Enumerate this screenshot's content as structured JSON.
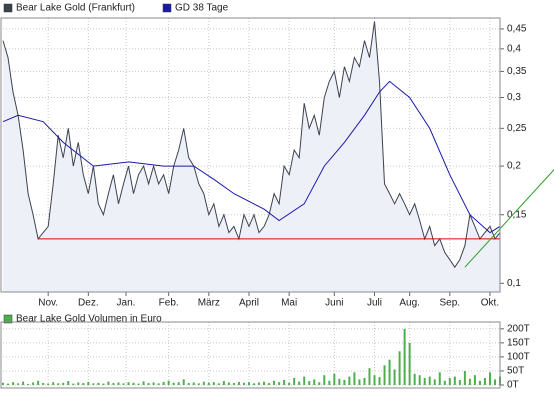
{
  "chart_data": [
    {
      "type": "line",
      "log": true,
      "grid": true,
      "xlim": [
        0,
        99
      ],
      "ylim": [
        0.095,
        0.48
      ],
      "xticks": [
        {
          "value": 9,
          "label": "Nov."
        },
        {
          "value": 17,
          "label": "Dez."
        },
        {
          "value": 24.5,
          "label": "Jan."
        },
        {
          "value": 33,
          "label": "Feb."
        },
        {
          "value": 41,
          "label": "März"
        },
        {
          "value": 49,
          "label": "April"
        },
        {
          "value": 57,
          "label": "Mai"
        },
        {
          "value": 66,
          "label": "Juni"
        },
        {
          "value": 74,
          "label": "Juli"
        },
        {
          "value": 81,
          "label": "Aug."
        },
        {
          "value": 89,
          "label": "Sep."
        },
        {
          "value": 97,
          "label": "Okt."
        }
      ],
      "yticks": [
        {
          "value": 0.1,
          "label": "0,1"
        },
        {
          "value": 0.15,
          "label": "0,15"
        },
        {
          "value": 0.2,
          "label": "0,2"
        },
        {
          "value": 0.25,
          "label": "0,25"
        },
        {
          "value": 0.3,
          "label": "0,3"
        },
        {
          "value": 0.35,
          "label": "0,35"
        },
        {
          "value": 0.4,
          "label": "0,4"
        },
        {
          "value": 0.45,
          "label": "0,45"
        }
      ],
      "series": [
        {
          "name": "Bear Lake Gold (Frankfurt)",
          "color": "#3c4250",
          "area_color": "#eef0f8",
          "x": [
            0,
            1,
            2,
            3,
            4,
            5,
            6,
            7,
            8,
            9,
            10,
            11,
            12,
            13,
            14,
            15,
            16,
            17,
            18,
            19,
            20,
            21,
            22,
            23,
            24,
            25,
            26,
            27,
            28,
            29,
            30,
            31,
            32,
            33,
            34,
            35,
            36,
            37,
            38,
            39,
            40,
            41,
            42,
            43,
            44,
            45,
            46,
            47,
            48,
            49,
            50,
            51,
            52,
            53,
            54,
            55,
            56,
            57,
            58,
            59,
            60,
            61,
            62,
            63,
            64,
            65,
            66,
            67,
            68,
            69,
            70,
            71,
            72,
            73,
            74,
            75,
            76,
            77,
            78,
            79,
            80,
            81,
            82,
            83,
            84,
            85,
            86,
            87,
            88,
            89,
            90,
            91,
            92,
            93,
            94,
            95,
            96,
            97,
            98,
            99
          ],
          "values": [
            0.42,
            0.38,
            0.31,
            0.27,
            0.22,
            0.17,
            0.15,
            0.13,
            0.135,
            0.14,
            0.18,
            0.24,
            0.21,
            0.25,
            0.2,
            0.23,
            0.19,
            0.17,
            0.2,
            0.16,
            0.15,
            0.17,
            0.19,
            0.16,
            0.18,
            0.2,
            0.17,
            0.19,
            0.2,
            0.18,
            0.2,
            0.18,
            0.19,
            0.17,
            0.2,
            0.22,
            0.25,
            0.21,
            0.2,
            0.18,
            0.17,
            0.15,
            0.16,
            0.14,
            0.15,
            0.135,
            0.14,
            0.13,
            0.15,
            0.14,
            0.15,
            0.135,
            0.14,
            0.15,
            0.17,
            0.16,
            0.2,
            0.19,
            0.22,
            0.21,
            0.29,
            0.25,
            0.27,
            0.24,
            0.3,
            0.33,
            0.35,
            0.3,
            0.36,
            0.33,
            0.38,
            0.36,
            0.42,
            0.38,
            0.47,
            0.33,
            0.18,
            0.17,
            0.16,
            0.17,
            0.16,
            0.15,
            0.16,
            0.145,
            0.13,
            0.14,
            0.125,
            0.13,
            0.12,
            0.115,
            0.11,
            0.115,
            0.125,
            0.15,
            0.14,
            0.13,
            0.135,
            0.14,
            0.13,
            0.135
          ]
        },
        {
          "name": "GD 38 Tage",
          "color": "#1a1aa8",
          "x": [
            0,
            3,
            8,
            12,
            18,
            25,
            32,
            38,
            42,
            46,
            52,
            55,
            60,
            64,
            68,
            72,
            75,
            77,
            81,
            85,
            89,
            93,
            97,
            99
          ],
          "values": [
            0.26,
            0.27,
            0.26,
            0.23,
            0.2,
            0.205,
            0.2,
            0.2,
            0.185,
            0.17,
            0.155,
            0.145,
            0.16,
            0.2,
            0.23,
            0.27,
            0.31,
            0.33,
            0.3,
            0.25,
            0.19,
            0.15,
            0.135,
            0.14
          ]
        }
      ],
      "lines": [
        {
          "color": "#e00000",
          "x": [
            7,
            99
          ],
          "values": [
            0.13,
            0.13
          ]
        },
        {
          "color": "#2ca02c",
          "x": [
            92,
            109.8
          ],
          "values": [
            0.11,
            0.196
          ]
        }
      ]
    },
    {
      "type": "bar",
      "ylim": [
        0,
        210
      ],
      "yticks": [
        {
          "value": 0,
          "label": "0T"
        },
        {
          "value": 50,
          "label": "50T"
        },
        {
          "value": 100,
          "label": "100T"
        },
        {
          "value": 150,
          "label": "150T"
        },
        {
          "value": 200,
          "label": "200T"
        }
      ],
      "series": [
        {
          "name": "Bear Lake Gold Volumen in Euro",
          "color": "#4cae4c",
          "values": [
            8,
            5,
            10,
            6,
            12,
            4,
            9,
            15,
            7,
            5,
            10,
            6,
            8,
            14,
            5,
            9,
            7,
            11,
            6,
            8,
            5,
            12,
            7,
            9,
            6,
            10,
            8,
            5,
            13,
            7,
            9,
            6,
            11,
            15,
            8,
            10,
            20,
            7,
            9,
            6,
            12,
            8,
            10,
            6,
            14,
            9,
            7,
            11,
            8,
            10,
            6,
            9,
            12,
            7,
            15,
            10,
            18,
            8,
            25,
            12,
            30,
            14,
            20,
            10,
            35,
            15,
            40,
            22,
            18,
            30,
            45,
            20,
            25,
            60,
            35,
            28,
            70,
            90,
            55,
            120,
            200,
            150,
            40,
            35,
            25,
            30,
            20,
            45,
            15,
            25,
            30,
            18,
            50,
            22,
            35,
            15,
            25,
            45,
            20,
            30
          ]
        }
      ]
    }
  ]
}
